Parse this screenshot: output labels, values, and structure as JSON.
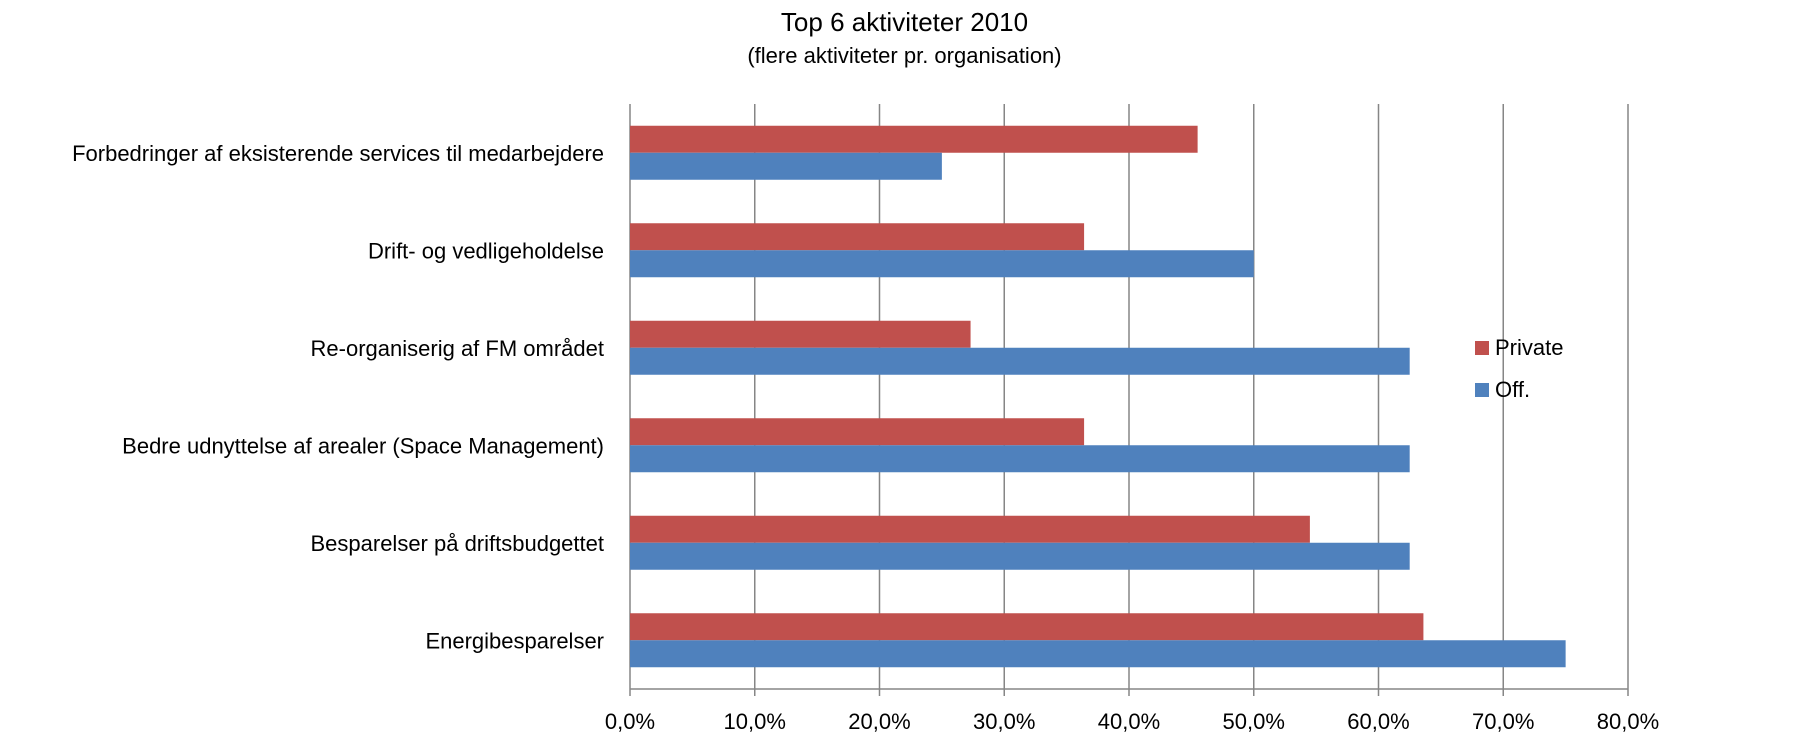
{
  "chart_data": {
    "type": "bar",
    "orientation": "horizontal",
    "title": "Top 6 aktiviteter 2010",
    "subtitle": "(flere aktiviteter pr. organisation)",
    "categories": [
      "Forbedringer af eksisterende services til medarbejdere",
      "Drift- og vedligeholdelse",
      "Re-organiserig af FM området",
      "Bedre udnyttelse af arealer (Space Management)",
      "Besparelser på driftsbudgettet",
      "Energibesparelser"
    ],
    "series": [
      {
        "name": "Private",
        "color": "#C0504D",
        "values": [
          45.5,
          36.4,
          27.3,
          36.4,
          54.5,
          63.6
        ]
      },
      {
        "name": "Off.",
        "color": "#4F81BD",
        "values": [
          25.0,
          50.0,
          62.5,
          62.5,
          62.5,
          75.0
        ]
      }
    ],
    "xlim": [
      0,
      80
    ],
    "xticks": [
      0,
      10,
      20,
      30,
      40,
      50,
      60,
      70,
      80
    ],
    "xtick_labels": [
      "0,0%",
      "10,0%",
      "20,0%",
      "30,0%",
      "40,0%",
      "50,0%",
      "60,0%",
      "70,0%",
      "80,0%"
    ],
    "grid": true,
    "legend": {
      "position": "right",
      "order": [
        "Private",
        "Off."
      ]
    }
  }
}
